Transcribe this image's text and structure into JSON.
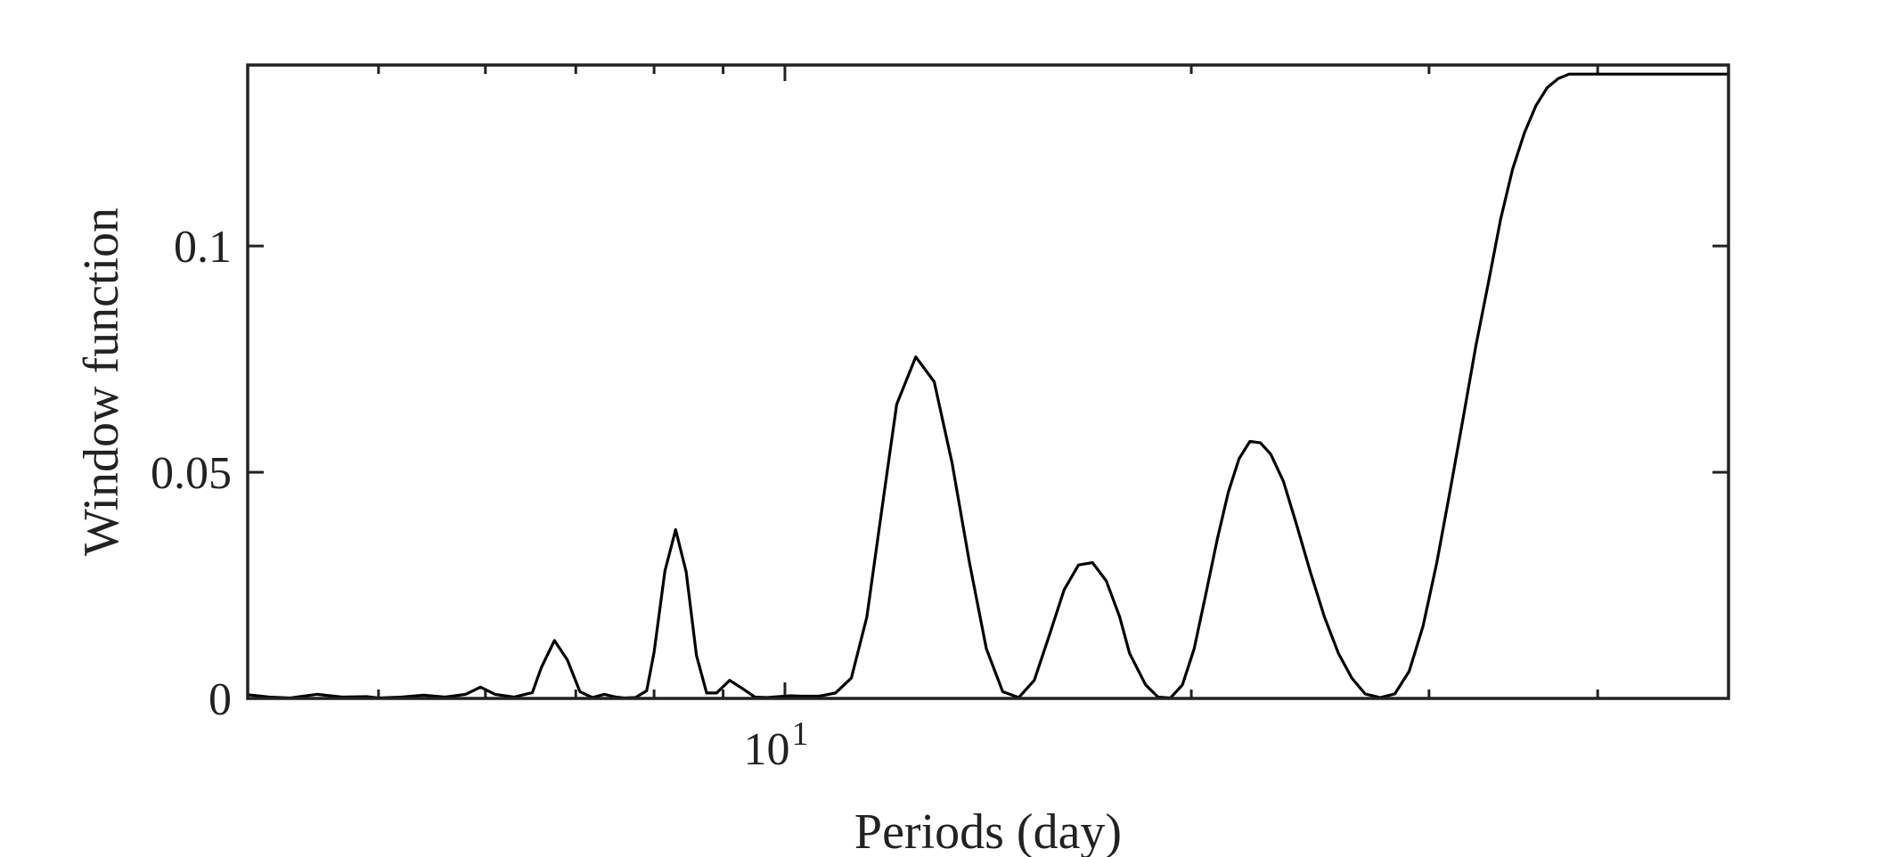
{
  "chart_data": {
    "type": "line",
    "xlabel": "Periods (day)",
    "ylabel": "Window function",
    "x_scale": "log",
    "xlim": [
      4,
      50
    ],
    "ylim": [
      0,
      0.14
    ],
    "x_ticks": [
      {
        "value": 10,
        "base": "10",
        "exp": "1"
      }
    ],
    "y_ticks": [
      {
        "value": 0,
        "label": "0"
      },
      {
        "value": 0.05,
        "label": "0.05"
      },
      {
        "value": 0.1,
        "label": "0.1"
      }
    ],
    "grid": false,
    "line_color": "#000000",
    "series": [
      {
        "x": [
          4.0,
          4.15,
          4.3,
          4.5,
          4.7,
          4.9,
          5.0,
          5.2,
          5.4,
          5.6,
          5.8,
          5.95,
          6.1,
          6.3,
          6.5,
          6.6,
          6.75,
          6.9,
          7.05,
          7.2,
          7.35,
          7.5,
          7.6,
          7.75,
          7.9,
          8.0,
          8.15,
          8.3,
          8.45,
          8.6,
          8.75,
          8.9,
          9.1,
          9.3,
          9.5,
          9.7,
          9.9,
          10.1,
          10.3,
          10.6,
          10.9,
          11.2,
          11.5,
          11.8,
          12.1,
          12.5,
          12.9,
          13.3,
          13.7,
          14.1,
          14.5,
          14.9,
          15.3,
          15.7,
          16.1,
          16.5,
          16.9,
          17.3,
          17.7,
          18.0,
          18.5,
          18.9,
          19.3,
          19.7,
          20.1,
          20.5,
          20.9,
          21.3,
          21.7,
          22.1,
          22.5,
          22.9,
          23.4,
          23.9,
          24.5,
          25.1,
          25.7,
          26.3,
          26.9,
          27.6,
          28.3,
          29.0,
          29.7,
          30.4,
          31.1,
          31.8,
          32.5,
          33.2,
          33.9,
          34.6,
          35.3,
          36.0,
          36.7,
          37.4,
          38.1,
          38.8,
          39.5,
          40.2,
          40.9,
          41.6,
          42.3,
          43.0,
          43.7,
          44.4,
          45.1,
          45.8,
          46.5,
          47.3,
          48.1,
          48.9,
          49.5,
          50.0
        ],
        "y": [
          0.0008,
          0.0003,
          0.0001,
          0.0009,
          0.0003,
          0.0004,
          0.0001,
          0.0003,
          0.0007,
          0.0003,
          0.0009,
          0.0025,
          0.0009,
          0.0003,
          0.0013,
          0.0068,
          0.0128,
          0.0085,
          0.0015,
          0.0002,
          0.0009,
          0.0003,
          0.0001,
          0.0002,
          0.0017,
          0.0102,
          0.0282,
          0.0373,
          0.028,
          0.0095,
          0.0012,
          0.0012,
          0.004,
          0.0022,
          0.0003,
          0.0002,
          0.0004,
          0.0006,
          0.0005,
          0.0005,
          0.0012,
          0.0045,
          0.018,
          0.042,
          0.065,
          0.0755,
          0.07,
          0.052,
          0.03,
          0.011,
          0.0015,
          0.0002,
          0.004,
          0.014,
          0.024,
          0.0295,
          0.03,
          0.026,
          0.018,
          0.01,
          0.003,
          0.0003,
          0.0001,
          0.003,
          0.011,
          0.023,
          0.035,
          0.0455,
          0.053,
          0.0568,
          0.0565,
          0.054,
          0.048,
          0.039,
          0.028,
          0.018,
          0.01,
          0.0045,
          0.001,
          0.0002,
          0.001,
          0.006,
          0.016,
          0.03,
          0.046,
          0.062,
          0.078,
          0.092,
          0.106,
          0.117,
          0.125,
          0.131,
          0.135,
          0.137,
          0.138,
          0.138,
          0.138,
          0.138,
          0.138,
          0.138,
          0.138,
          0.138,
          0.138,
          0.138,
          0.138,
          0.138,
          0.138,
          0.138,
          0.138,
          0.138,
          0.138,
          0.138
        ]
      }
    ]
  }
}
